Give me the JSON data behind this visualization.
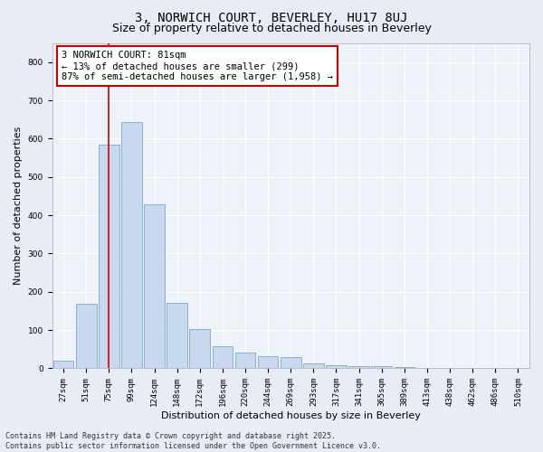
{
  "title_line1": "3, NORWICH COURT, BEVERLEY, HU17 8UJ",
  "title_line2": "Size of property relative to detached houses in Beverley",
  "xlabel": "Distribution of detached houses by size in Beverley",
  "ylabel": "Number of detached properties",
  "categories": [
    "27sqm",
    "51sqm",
    "75sqm",
    "99sqm",
    "124sqm",
    "148sqm",
    "172sqm",
    "196sqm",
    "220sqm",
    "244sqm",
    "269sqm",
    "293sqm",
    "317sqm",
    "341sqm",
    "365sqm",
    "389sqm",
    "413sqm",
    "438sqm",
    "462sqm",
    "486sqm",
    "510sqm"
  ],
  "values": [
    20,
    168,
    585,
    643,
    428,
    172,
    102,
    57,
    42,
    32,
    30,
    13,
    8,
    5,
    5,
    3,
    0,
    0,
    0,
    0,
    0
  ],
  "bar_color": "#c8d8ee",
  "bar_edge_color": "#7aaad0",
  "fig_background_color": "#e8edf5",
  "plot_background_color": "#eef3fa",
  "grid_color": "#ffffff",
  "vline_x": 2.0,
  "vline_color": "#cc0000",
  "annotation_text": "3 NORWICH COURT: 81sqm\n← 13% of detached houses are smaller (299)\n87% of semi-detached houses are larger (1,958) →",
  "annotation_box_edgecolor": "#cc0000",
  "annotation_box_facecolor": "#ffffff",
  "ylim": [
    0,
    850
  ],
  "yticks": [
    0,
    100,
    200,
    300,
    400,
    500,
    600,
    700,
    800
  ],
  "footnote_line1": "Contains HM Land Registry data © Crown copyright and database right 2025.",
  "footnote_line2": "Contains public sector information licensed under the Open Government Licence v3.0.",
  "title_fontsize": 10,
  "subtitle_fontsize": 9,
  "axis_label_fontsize": 8,
  "tick_fontsize": 6.5,
  "annotation_fontsize": 7.5,
  "footnote_fontsize": 6
}
